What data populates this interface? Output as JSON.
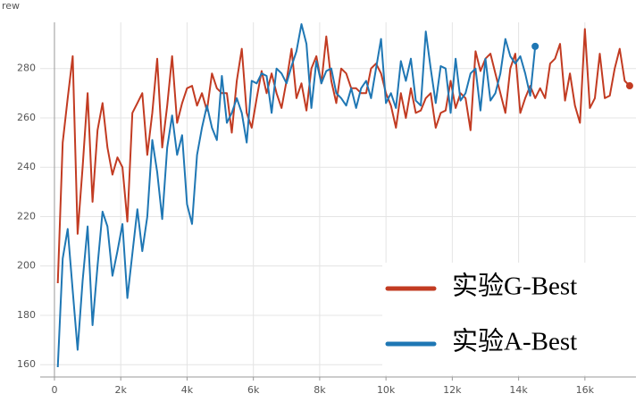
{
  "chart_data": {
    "type": "line",
    "y_label": "rew",
    "x": [
      100,
      250,
      400,
      550,
      700,
      850,
      1000,
      1150,
      1300,
      1450,
      1600,
      1750,
      1900,
      2050,
      2200,
      2350,
      2500,
      2650,
      2800,
      2950,
      3100,
      3250,
      3400,
      3550,
      3700,
      3850,
      4000,
      4150,
      4300,
      4450,
      4600,
      4750,
      4900,
      5050,
      5200,
      5350,
      5500,
      5650,
      5800,
      5950,
      6100,
      6250,
      6400,
      6550,
      6700,
      6850,
      7000,
      7150,
      7300,
      7450,
      7600,
      7750,
      7900,
      8050,
      8200,
      8350,
      8500,
      8650,
      8800,
      8950,
      9100,
      9250,
      9400,
      9550,
      9700,
      9850,
      10000,
      10150,
      10300,
      10450,
      10600,
      10750,
      10900,
      11050,
      11200,
      11350,
      11500,
      11650,
      11800,
      11950,
      12100,
      12250,
      12400,
      12550,
      12700,
      12850,
      13000,
      13150,
      13300,
      13450,
      13600,
      13750,
      13900,
      14050,
      14200,
      14350,
      14500,
      14650,
      14800,
      14950,
      15100,
      15250,
      15400,
      15550,
      15700,
      15850,
      16000,
      16150,
      16300,
      16450,
      16600,
      16750,
      16900,
      17050,
      17200,
      17350
    ],
    "series": [
      {
        "name": "实验G-Best",
        "color": "#c23b22",
        "values": [
          193,
          250,
          268,
          285,
          213,
          240,
          270,
          226,
          255,
          266,
          248,
          237,
          244,
          240,
          218,
          262,
          266,
          270,
          245,
          262,
          284,
          248,
          265,
          285,
          258,
          266,
          272,
          273,
          265,
          270,
          263,
          278,
          272,
          270,
          270,
          254,
          275,
          288,
          262,
          256,
          268,
          279,
          270,
          278,
          270,
          264,
          275,
          288,
          268,
          274,
          263,
          280,
          285,
          274,
          293,
          275,
          266,
          280,
          278,
          272,
          272,
          270,
          270,
          280,
          282,
          278,
          270,
          265,
          256,
          270,
          260,
          272,
          262,
          263,
          268,
          270,
          256,
          262,
          263,
          275,
          264,
          270,
          268,
          255,
          287,
          279,
          284,
          286,
          278,
          270,
          262,
          280,
          286,
          262,
          268,
          273,
          268,
          272,
          268,
          282,
          284,
          290,
          267,
          278,
          265,
          258,
          296,
          264,
          268,
          286,
          268,
          269,
          280,
          288,
          275,
          273
        ]
      },
      {
        "name": "实验A-Best",
        "color": "#1f77b4",
        "values": [
          159,
          203,
          215,
          190,
          166,
          194,
          216,
          176,
          200,
          222,
          216,
          196,
          206,
          217,
          187,
          205,
          223,
          206,
          220,
          251,
          238,
          219,
          248,
          261,
          245,
          253,
          225,
          217,
          245,
          256,
          265,
          256,
          251,
          277,
          258,
          262,
          268,
          262,
          250,
          275,
          274,
          278,
          277,
          262,
          280,
          278,
          274,
          281,
          287,
          298,
          290,
          264,
          283,
          274,
          279,
          280,
          270,
          268,
          265,
          272,
          264,
          272,
          275,
          268,
          280,
          292,
          266,
          270,
          264,
          283,
          275,
          284,
          267,
          265,
          295,
          280,
          266,
          281,
          280,
          262,
          284,
          267,
          270,
          278,
          280,
          263,
          284,
          267,
          270,
          278,
          292,
          285,
          282,
          285,
          278,
          269,
          289,
          null,
          null,
          null,
          null,
          null,
          null,
          null,
          null,
          null,
          null,
          null,
          null,
          null,
          null,
          null,
          null,
          null,
          null,
          null
        ]
      }
    ],
    "xlim": [
      -430,
      17540
    ],
    "ylim": [
      155,
      298
    ],
    "xticks": [
      0,
      {
        "value": 2000,
        "label": "2k"
      },
      {
        "value": 4000,
        "label": "4k"
      },
      {
        "value": 6000,
        "label": "6k"
      },
      {
        "value": 8000,
        "label": "8k"
      },
      {
        "value": 10000,
        "label": "10k"
      },
      {
        "value": 12000,
        "label": "12k"
      },
      {
        "value": 14000,
        "label": "14k"
      },
      {
        "value": 16000,
        "label": "16k"
      }
    ],
    "yticks": [
      160,
      180,
      200,
      220,
      240,
      260,
      280
    ],
    "grid": true,
    "legend": "lower right"
  }
}
